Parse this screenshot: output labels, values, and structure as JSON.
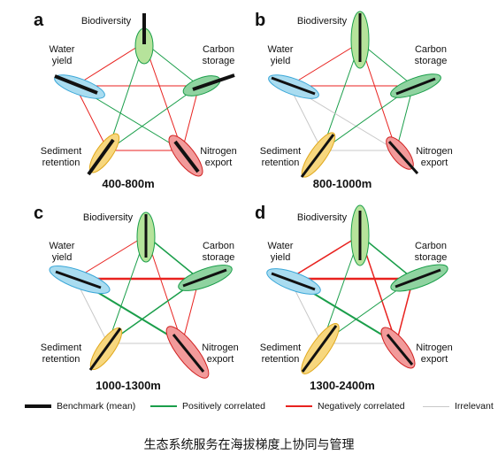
{
  "panels": [
    {
      "letter": "a",
      "title": "400-800m"
    },
    {
      "letter": "b",
      "title": "800-1000m"
    },
    {
      "letter": "c",
      "title": "1000-1300m"
    },
    {
      "letter": "d",
      "title": "1300-2400m"
    }
  ],
  "nodes": {
    "biodiversity": "Biodiversity",
    "carbon_1": "Carbon",
    "carbon_2": "storage",
    "water_1": "Water",
    "water_2": "yield",
    "sediment_1": "Sediment",
    "sediment_2": "retention",
    "nitrogen_1": "Nitrogen",
    "nitrogen_2": "export"
  },
  "legend": {
    "benchmark": "Benchmark (mean)",
    "positive": "Positively correlated",
    "negative": "Negatively correlated",
    "irrelevant": "Irrelevant"
  },
  "colors": {
    "positive": "#1a9e4a",
    "negative": "#e8221f",
    "irrelevant": "#c8c8c8",
    "benchmark": "#111111",
    "biodiversity_fill": "#b6e39b",
    "carbon_fill": "#8fd3a0",
    "water_fill": "#a9dcf0",
    "sediment_fill": "#f7d77e",
    "nitrogen_fill": "#f29a9a"
  },
  "caption": "生态系统服务在海拔梯度上协同与管理"
}
